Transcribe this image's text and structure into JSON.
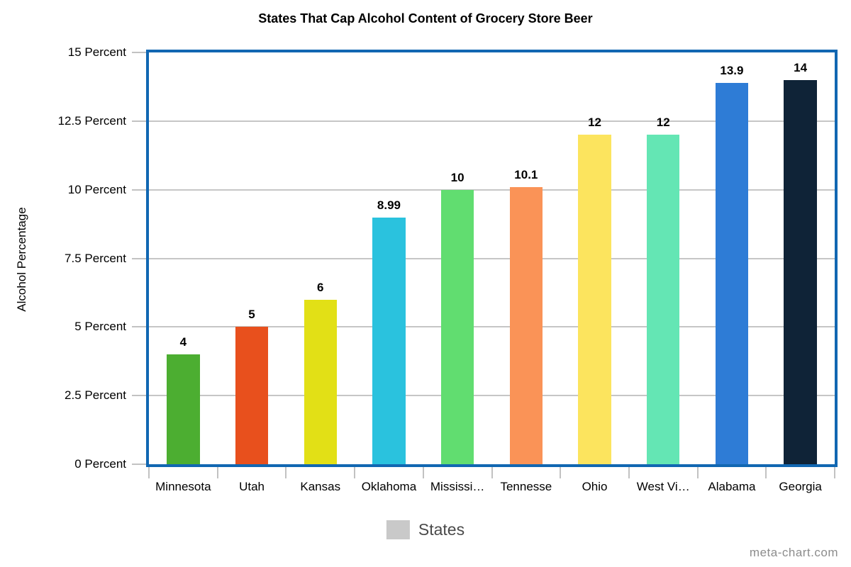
{
  "title": "States That Cap Alcohol Content of Grocery Store Beer",
  "watermark": "meta-chart.com",
  "legend": {
    "label": "States",
    "swatch_color": "#c9c9c9"
  },
  "chart_data": {
    "type": "bar",
    "title": "States That Cap Alcohol Content of Grocery Store Beer",
    "xlabel": "",
    "ylabel": "Alcohol Percentage",
    "categories": [
      "Minnesota",
      "Utah",
      "Kansas",
      "Oklahoma",
      "Mississi…",
      "Tennesse",
      "Ohio",
      "West Vi…",
      "Alabama",
      "Georgia"
    ],
    "values": [
      4,
      5,
      6,
      8.99,
      10,
      10.1,
      12,
      12,
      13.9,
      14
    ],
    "value_labels": [
      "4",
      "5",
      "6",
      "8.99",
      "10",
      "10.1",
      "12",
      "12",
      "13.9",
      "14"
    ],
    "bar_colors": [
      "#4cae31",
      "#e8501d",
      "#e2e016",
      "#2ac2de",
      "#61dd70",
      "#fa9357",
      "#fce45e",
      "#64e6b4",
      "#2e7cd6",
      "#0f2337"
    ],
    "ylim": [
      0,
      15
    ],
    "yticks": [
      0,
      2.5,
      5,
      7.5,
      10,
      12.5,
      15
    ],
    "ytick_labels": [
      "0 Percent",
      "2.5 Percent",
      "5 Percent",
      "7.5 Percent",
      "10 Percent",
      "12.5 Percent",
      "15 Percent"
    ],
    "grid": true,
    "legend_position": "bottom",
    "legend_entries": [
      "States"
    ],
    "colors": {
      "plot_border": "#1167b2",
      "gridline": "#c6c6c6",
      "tick": "#c2c2c2",
      "background": "#ffffff",
      "text": "#000000"
    }
  }
}
